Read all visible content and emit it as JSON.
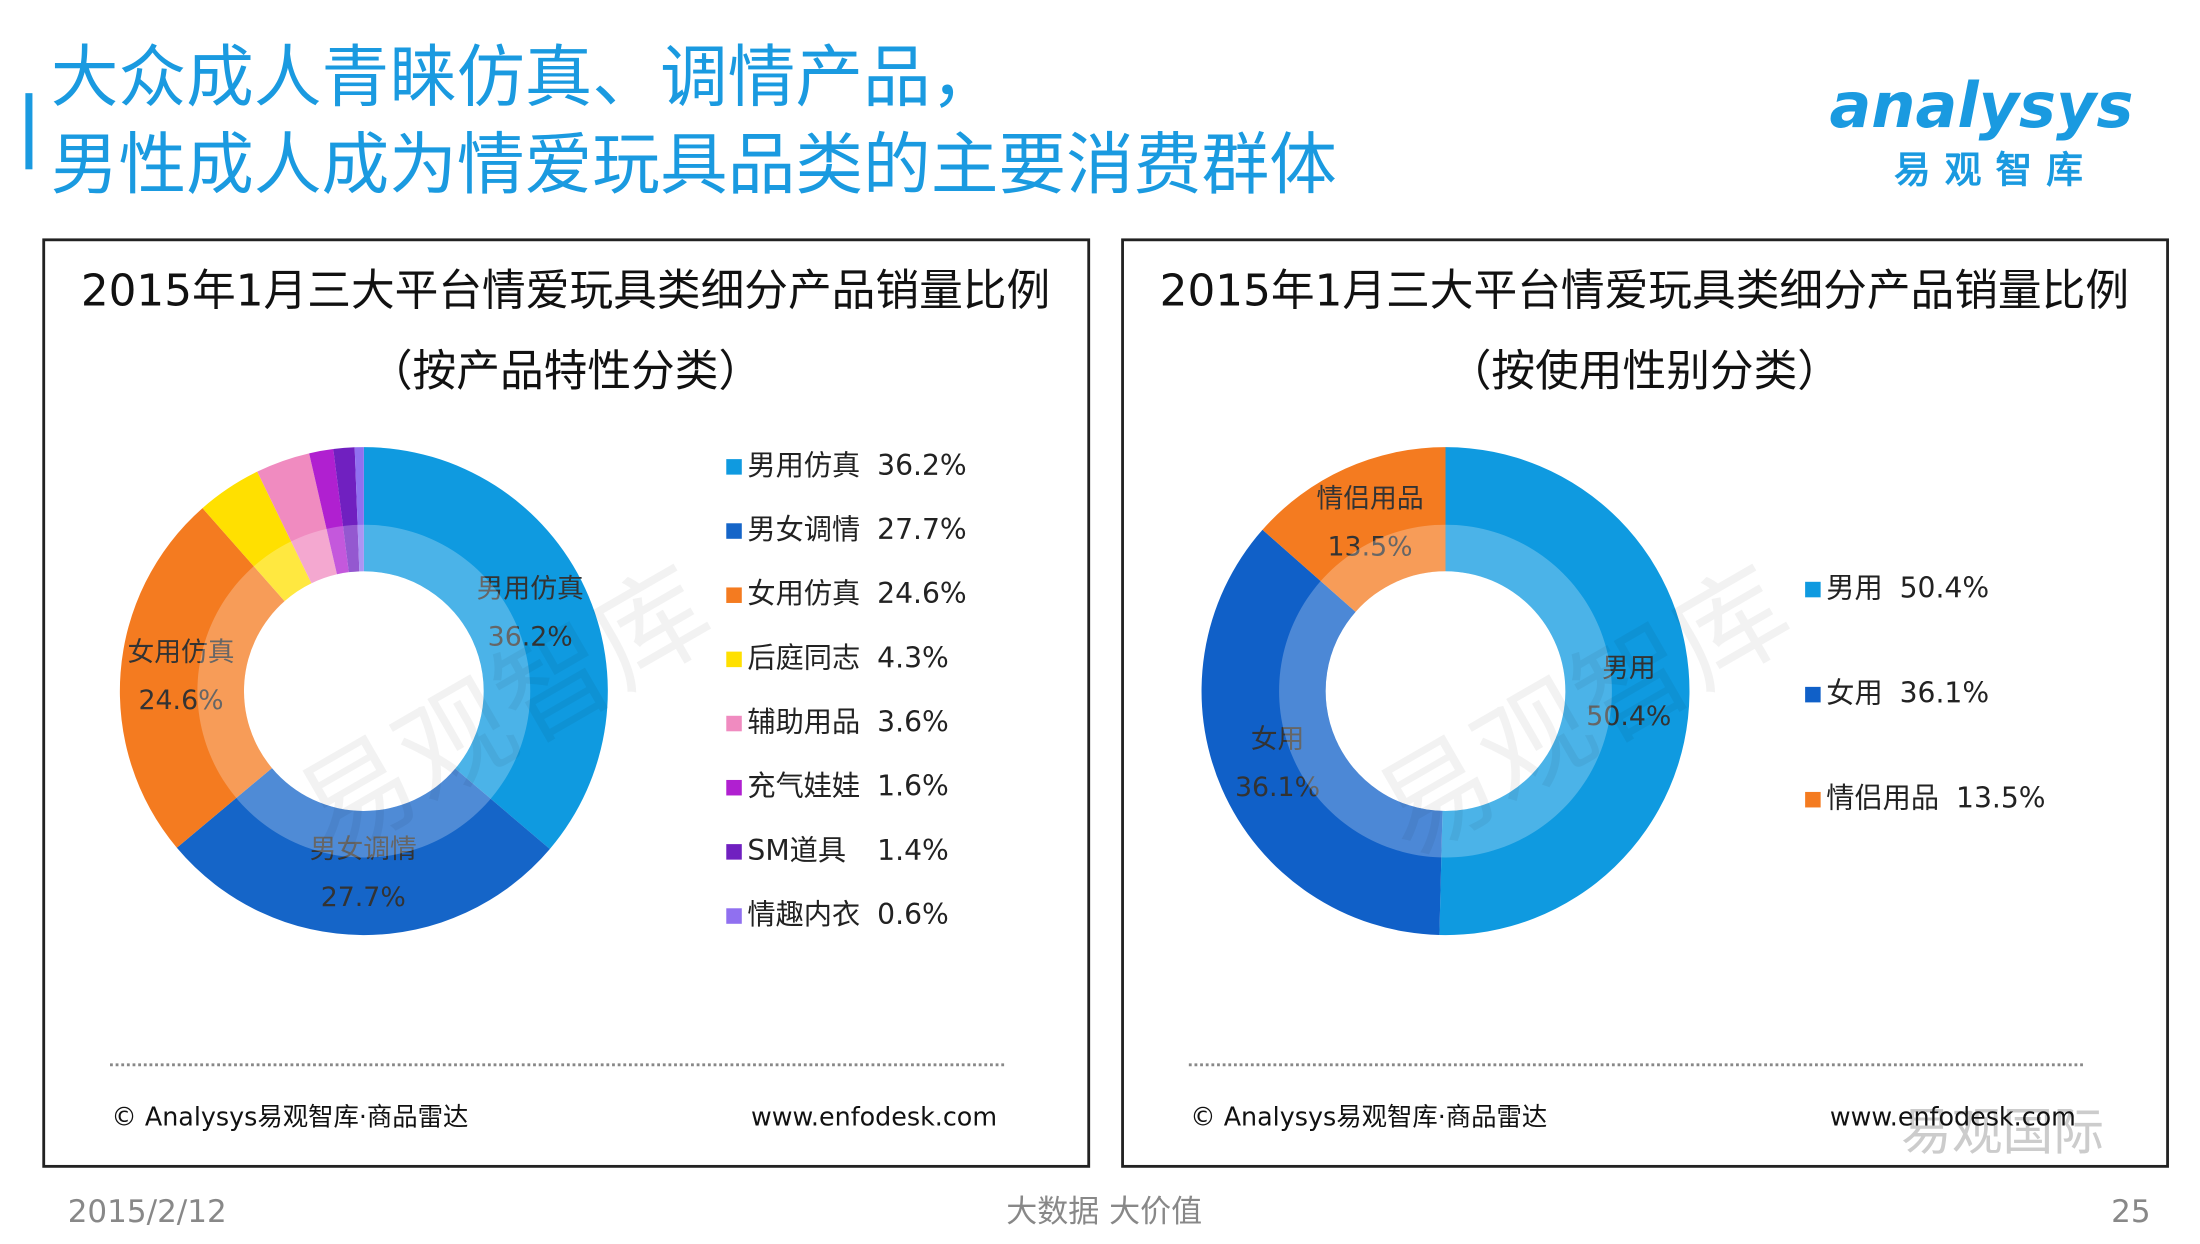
{
  "header": {
    "title_lines": [
      "大众成人青睐仿真、调情产品，",
      "男性成人成为情爱玩具品类的主要消费群体"
    ],
    "logo": {
      "brand": "analysys",
      "name": "易观智库"
    }
  },
  "chart_data": [
    {
      "type": "donut",
      "title": "2015年1月三大平台情爱玩具类细分产品销量比例",
      "subtitle": "（按产品特性分类）",
      "categories": [
        "男用仿真",
        "男女调情",
        "女用仿真",
        "后庭同志",
        "辅助用品",
        "充气娃娃",
        "SM道具",
        "情趣内衣"
      ],
      "values": [
        36.2,
        27.7,
        24.6,
        4.3,
        3.6,
        1.6,
        1.4,
        0.6
      ],
      "value_labels": [
        "36.2%",
        "27.7%",
        "24.6%",
        "4.3%",
        "3.6%",
        "1.6%",
        "1.4%",
        "0.6%"
      ],
      "colors": [
        "#0f9ae0",
        "#1565c8",
        "#f47b20",
        "#ffe000",
        "#f08bc0",
        "#b020d0",
        "#7020c0",
        "#9070f0"
      ],
      "watermark": "易观智库",
      "source": "© Analysys易观智库·商品雷达",
      "url": "www.enfodesk.com"
    },
    {
      "type": "donut",
      "title": "2015年1月三大平台情爱玩具类细分产品销量比例",
      "subtitle": "（按使用性别分类）",
      "categories": [
        "男用",
        "女用",
        "情侣用品"
      ],
      "values": [
        50.4,
        36.1,
        13.5
      ],
      "value_labels": [
        "50.4%",
        "36.1%",
        "13.5%"
      ],
      "colors": [
        "#0f9ae0",
        "#1060c8",
        "#f47b20"
      ],
      "watermark": "易观智库",
      "source": "© Analysys易观智库·商品雷达",
      "url": "www.enfodesk.com"
    }
  ],
  "footer": {
    "date": "2015/2/12",
    "slogan": "大数据  大价值",
    "page": "25",
    "wechat": "易观国际"
  }
}
